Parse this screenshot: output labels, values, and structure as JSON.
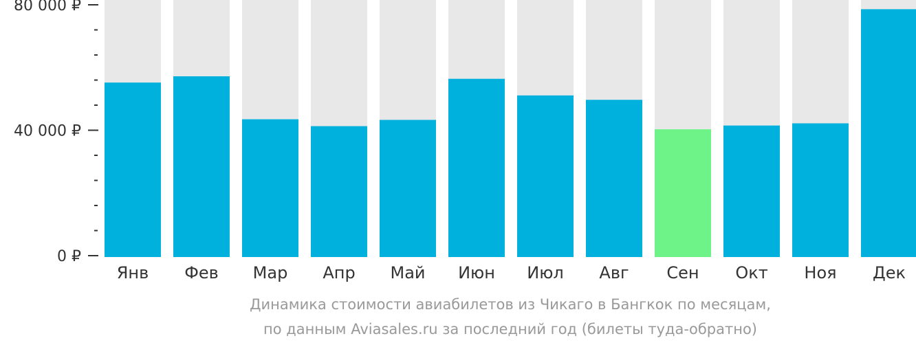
{
  "chart_data": {
    "type": "bar",
    "categories": [
      "Янв",
      "Фев",
      "Мар",
      "Апр",
      "Май",
      "Июн",
      "Июл",
      "Авг",
      "Сен",
      "Окт",
      "Ноя",
      "Дек"
    ],
    "values": [
      55200,
      57200,
      43500,
      41300,
      43300,
      56400,
      51100,
      49700,
      40300,
      41500,
      42200,
      78600
    ],
    "highlight_index": 8,
    "ylim": [
      0,
      80000
    ],
    "yticks": [
      {
        "value": 0,
        "label": "0 ₽"
      },
      {
        "value": 40000,
        "label": "40 000 ₽"
      },
      {
        "value": 80000,
        "label": "80 000 ₽"
      }
    ],
    "minor_tick_step": 8000,
    "title": "",
    "xlabel": "",
    "ylabel": "",
    "grid": false,
    "colors": {
      "bar": "#00b0dd",
      "highlight": "#6ef389",
      "background_bar": "#e8e8e8",
      "axis": "#333333"
    }
  },
  "caption": {
    "line1": "Динамика стоимости авиабилетов из Чикаго в Бангкок по месяцам,",
    "line2": "по данным Aviasales.ru за последний год (билеты туда-обратно)"
  }
}
